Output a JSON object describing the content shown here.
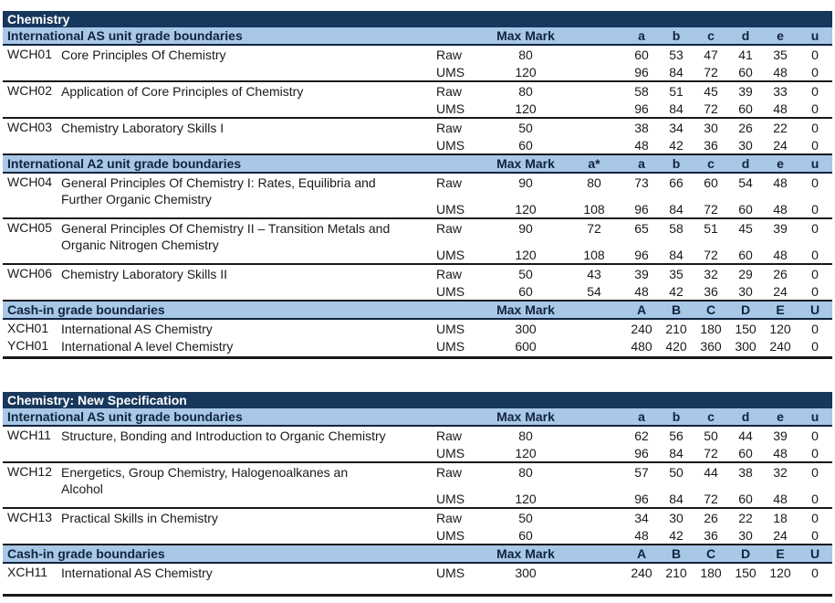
{
  "colors": {
    "title_bar_bg": "#17375D",
    "section_header_bg": "#A9C7E7",
    "title_bar_text": "#FFFFFF",
    "section_header_text": "#10243E",
    "rule_dark": "#0E2440",
    "rule_black": "#181818"
  },
  "tables": [
    {
      "cls": "gb-table",
      "title": "Chemistry",
      "sections": [
        {
          "header": "International AS unit grade boundaries",
          "max_label": "Max Mark",
          "grades": [
            "",
            "a",
            "b",
            "c",
            "d",
            "e",
            "u"
          ],
          "units": [
            {
              "cls": "unit",
              "code": "WCH01",
              "title_lines": [
                "Core Principles Of Chemistry"
              ],
              "rows": [
                {
                  "type": "Raw",
                  "max": "80",
                  "values": [
                    "",
                    "60",
                    "53",
                    "47",
                    "41",
                    "35",
                    "0"
                  ]
                },
                {
                  "type": "UMS",
                  "max": "120",
                  "values": [
                    "",
                    "96",
                    "84",
                    "72",
                    "60",
                    "48",
                    "0"
                  ]
                }
              ]
            },
            {
              "cls": "unit",
              "code": "WCH02",
              "title_lines": [
                "Application of Core Principles of Chemistry"
              ],
              "rows": [
                {
                  "type": "Raw",
                  "max": "80",
                  "values": [
                    "",
                    "58",
                    "51",
                    "45",
                    "39",
                    "33",
                    "0"
                  ]
                },
                {
                  "type": "UMS",
                  "max": "120",
                  "values": [
                    "",
                    "96",
                    "84",
                    "72",
                    "60",
                    "48",
                    "0"
                  ]
                }
              ]
            },
            {
              "cls": "unit",
              "code": "WCH03",
              "title_lines": [
                "Chemistry Laboratory Skills I"
              ],
              "rows": [
                {
                  "type": "Raw",
                  "max": "50",
                  "values": [
                    "",
                    "38",
                    "34",
                    "30",
                    "26",
                    "22",
                    "0"
                  ]
                },
                {
                  "type": "UMS",
                  "max": "60",
                  "values": [
                    "",
                    "48",
                    "42",
                    "36",
                    "30",
                    "24",
                    "0"
                  ]
                }
              ]
            }
          ]
        },
        {
          "header": "International A2 unit grade boundaries",
          "max_label": "Max Mark",
          "grades": [
            "a*",
            "a",
            "b",
            "c",
            "d",
            "e",
            "u"
          ],
          "units": [
            {
              "cls": "unit tall",
              "code": "WCH04",
              "title_lines": [
                "General Principles Of Chemistry I: Rates, Equilibria and",
                "Further Organic Chemistry"
              ],
              "rows": [
                {
                  "type": "Raw",
                  "max": "90",
                  "values": [
                    "80",
                    "73",
                    "66",
                    "60",
                    "54",
                    "48",
                    "0"
                  ]
                },
                {
                  "type": "UMS",
                  "max": "120",
                  "values": [
                    "108",
                    "96",
                    "84",
                    "72",
                    "60",
                    "48",
                    "0"
                  ]
                }
              ]
            },
            {
              "cls": "unit tall",
              "code": "WCH05",
              "title_lines": [
                "General Principles Of Chemistry II – Transition Metals and",
                "Organic Nitrogen Chemistry"
              ],
              "rows": [
                {
                  "type": "Raw",
                  "max": "90",
                  "values": [
                    "72",
                    "65",
                    "58",
                    "51",
                    "45",
                    "39",
                    "0"
                  ]
                },
                {
                  "type": "UMS",
                  "max": "120",
                  "values": [
                    "108",
                    "96",
                    "84",
                    "72",
                    "60",
                    "48",
                    "0"
                  ]
                }
              ]
            },
            {
              "cls": "unit",
              "code": "WCH06",
              "title_lines": [
                "Chemistry Laboratory Skills II"
              ],
              "rows": [
                {
                  "type": "Raw",
                  "max": "50",
                  "values": [
                    "43",
                    "39",
                    "35",
                    "32",
                    "29",
                    "26",
                    "0"
                  ]
                },
                {
                  "type": "UMS",
                  "max": "60",
                  "values": [
                    "54",
                    "48",
                    "42",
                    "36",
                    "30",
                    "24",
                    "0"
                  ]
                }
              ]
            }
          ]
        },
        {
          "header": "Cash-in grade boundaries",
          "max_label": "Max Mark",
          "grades": [
            "",
            "A",
            "B",
            "C",
            "D",
            "E",
            "U"
          ],
          "units": [
            {
              "cls": "unit cash",
              "code": "XCH01",
              "title_lines": [
                "International AS Chemistry"
              ],
              "rows": [
                {
                  "type": "UMS",
                  "max": "300",
                  "values": [
                    "",
                    "240",
                    "210",
                    "180",
                    "150",
                    "120",
                    "0"
                  ]
                }
              ]
            },
            {
              "cls": "unit cash",
              "code": "YCH01",
              "title_lines": [
                "International A level Chemistry"
              ],
              "rows": [
                {
                  "type": "UMS",
                  "max": "600",
                  "values": [
                    "",
                    "480",
                    "420",
                    "360",
                    "300",
                    "240",
                    "0"
                  ]
                }
              ]
            }
          ]
        }
      ]
    },
    {
      "cls": "gb-table pad-bottom",
      "title": "Chemistry: New Specification",
      "sections": [
        {
          "header": "International AS unit grade boundaries",
          "max_label": "Max Mark",
          "grades": [
            "",
            "a",
            "b",
            "c",
            "d",
            "e",
            "u"
          ],
          "units": [
            {
              "cls": "unit",
              "code": "WCH11",
              "title_lines": [
                "Structure, Bonding and Introduction to Organic Chemistry"
              ],
              "rows": [
                {
                  "type": "Raw",
                  "max": "80",
                  "values": [
                    "",
                    "62",
                    "56",
                    "50",
                    "44",
                    "39",
                    "0"
                  ]
                },
                {
                  "type": "UMS",
                  "max": "120",
                  "values": [
                    "",
                    "96",
                    "84",
                    "72",
                    "60",
                    "48",
                    "0"
                  ]
                }
              ]
            },
            {
              "cls": "unit tall",
              "code": "WCH12",
              "title_lines": [
                "Energetics, Group Chemistry, Halogenoalkanes an",
                "Alcohol"
              ],
              "rows": [
                {
                  "type": "Raw",
                  "max": "80",
                  "values": [
                    "",
                    "57",
                    "50",
                    "44",
                    "38",
                    "32",
                    "0"
                  ]
                },
                {
                  "type": "UMS",
                  "max": "120",
                  "values": [
                    "",
                    "96",
                    "84",
                    "72",
                    "60",
                    "48",
                    "0"
                  ]
                }
              ]
            },
            {
              "cls": "unit",
              "code": "WCH13",
              "title_lines": [
                "Practical Skills in Chemistry"
              ],
              "rows": [
                {
                  "type": "Raw",
                  "max": "50",
                  "values": [
                    "",
                    "34",
                    "30",
                    "26",
                    "22",
                    "18",
                    "0"
                  ]
                },
                {
                  "type": "UMS",
                  "max": "60",
                  "values": [
                    "",
                    "48",
                    "42",
                    "36",
                    "30",
                    "24",
                    "0"
                  ]
                }
              ]
            }
          ]
        },
        {
          "header": "Cash-in grade boundaries",
          "max_label": "Max Mark",
          "grades": [
            "",
            "A",
            "B",
            "C",
            "D",
            "E",
            "U"
          ],
          "units": [
            {
              "cls": "unit cash",
              "code": "XCH11",
              "title_lines": [
                "International AS Chemistry"
              ],
              "rows": [
                {
                  "type": "UMS",
                  "max": "300",
                  "values": [
                    "",
                    "240",
                    "210",
                    "180",
                    "150",
                    "120",
                    "0"
                  ]
                }
              ]
            }
          ]
        }
      ]
    }
  ]
}
